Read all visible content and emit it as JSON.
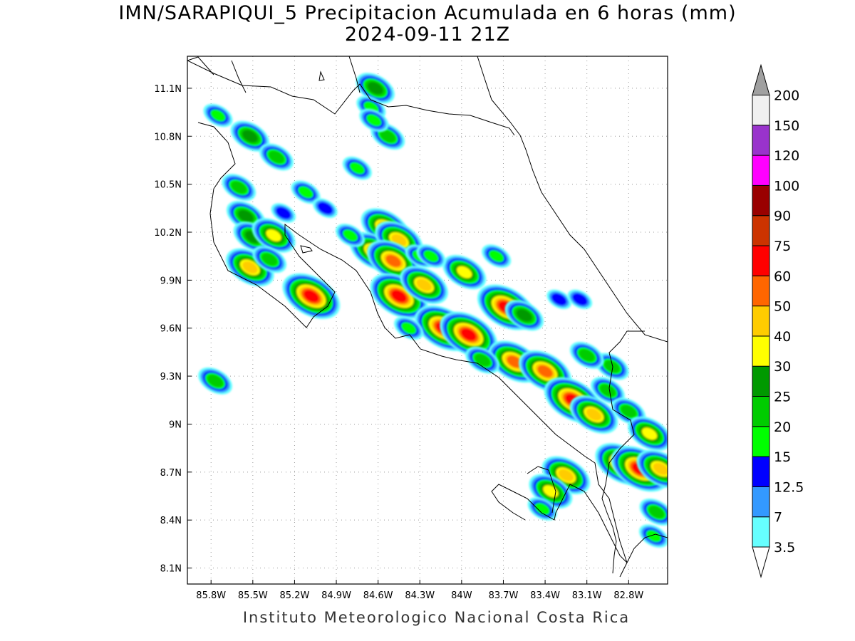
{
  "title_line1": "IMN/SARAPIQUI_5 Precipitacion Acumulada en 6 horas (mm)",
  "title_line2": "2024-09-11 21Z",
  "footer": "Instituto Meteorologico Nacional Costa Rica",
  "map": {
    "lon_range": [
      -85.97,
      -82.52
    ],
    "lat_range": [
      8.0,
      11.3
    ],
    "lon_ticks": [
      "85.8W",
      "85.5W",
      "85.2W",
      "84.9W",
      "84.6W",
      "84.3W",
      "84W",
      "83.7W",
      "83.4W",
      "83.1W",
      "82.8W"
    ],
    "lon_tick_values": [
      -85.8,
      -85.5,
      -85.2,
      -84.9,
      -84.6,
      -84.3,
      -84.0,
      -83.7,
      -83.4,
      -83.1,
      -82.8
    ],
    "lat_ticks": [
      "11.1N",
      "10.8N",
      "10.5N",
      "10.2N",
      "9.9N",
      "9.6N",
      "9.3N",
      "9N",
      "8.7N",
      "8.4N",
      "8.1N"
    ],
    "lat_tick_values": [
      11.1,
      10.8,
      10.5,
      10.2,
      9.9,
      9.6,
      9.3,
      9.0,
      8.7,
      8.4,
      8.1
    ],
    "grid": true
  },
  "colorbar": {
    "labels": [
      "3.5",
      "7",
      "12.5",
      "15",
      "20",
      "25",
      "30",
      "40",
      "50",
      "60",
      "75",
      "90",
      "100",
      "120",
      "150",
      "200"
    ],
    "colors": [
      "#66ffff",
      "#3399ff",
      "#0000ff",
      "#00ff00",
      "#00cc00",
      "#009900",
      "#ffff00",
      "#ffcc00",
      "#ff6600",
      "#ff0000",
      "#cc3300",
      "#990000",
      "#ff00ff",
      "#9933cc",
      "#f0f0f0",
      "#a0a0a0"
    ]
  },
  "precip_cells": [
    {
      "lon": -85.75,
      "lat": 10.93,
      "level": 3
    },
    {
      "lon": -85.52,
      "lat": 10.8,
      "level": 5
    },
    {
      "lon": -85.33,
      "lat": 10.67,
      "level": 4
    },
    {
      "lon": -85.12,
      "lat": 10.45,
      "level": 3
    },
    {
      "lon": -85.6,
      "lat": 10.48,
      "level": 4
    },
    {
      "lon": -85.55,
      "lat": 10.3,
      "level": 5
    },
    {
      "lon": -85.5,
      "lat": 10.17,
      "level": 5
    },
    {
      "lon": -85.35,
      "lat": 10.18,
      "level": 6
    },
    {
      "lon": -85.52,
      "lat": 9.98,
      "level": 7
    },
    {
      "lon": -85.38,
      "lat": 10.03,
      "level": 4
    },
    {
      "lon": -85.08,
      "lat": 9.8,
      "level": 9
    },
    {
      "lon": -84.62,
      "lat": 11.1,
      "level": 5
    },
    {
      "lon": -84.65,
      "lat": 10.98,
      "level": 3
    },
    {
      "lon": -84.53,
      "lat": 10.8,
      "level": 4
    },
    {
      "lon": -84.63,
      "lat": 10.9,
      "level": 3
    },
    {
      "lon": -84.75,
      "lat": 10.6,
      "level": 3
    },
    {
      "lon": -84.55,
      "lat": 10.23,
      "level": 7
    },
    {
      "lon": -84.63,
      "lat": 10.08,
      "level": 7
    },
    {
      "lon": -84.45,
      "lat": 10.15,
      "level": 7
    },
    {
      "lon": -84.49,
      "lat": 10.02,
      "level": 8
    },
    {
      "lon": -84.3,
      "lat": 10.05,
      "level": 3
    },
    {
      "lon": -84.45,
      "lat": 9.8,
      "level": 9
    },
    {
      "lon": -84.27,
      "lat": 9.87,
      "level": 7
    },
    {
      "lon": -83.98,
      "lat": 9.95,
      "level": 6
    },
    {
      "lon": -84.13,
      "lat": 9.6,
      "level": 9
    },
    {
      "lon": -83.95,
      "lat": 9.56,
      "level": 9
    },
    {
      "lon": -83.68,
      "lat": 9.73,
      "level": 9
    },
    {
      "lon": -83.55,
      "lat": 9.68,
      "level": 5
    },
    {
      "lon": -83.62,
      "lat": 9.39,
      "level": 8
    },
    {
      "lon": -83.4,
      "lat": 9.33,
      "level": 8
    },
    {
      "lon": -83.2,
      "lat": 9.15,
      "level": 9
    },
    {
      "lon": -83.05,
      "lat": 9.06,
      "level": 7
    },
    {
      "lon": -82.92,
      "lat": 9.36,
      "level": 4
    },
    {
      "lon": -82.95,
      "lat": 9.21,
      "level": 4
    },
    {
      "lon": -82.8,
      "lat": 9.08,
      "level": 4
    },
    {
      "lon": -82.65,
      "lat": 8.94,
      "level": 6
    },
    {
      "lon": -82.85,
      "lat": 8.75,
      "level": 8
    },
    {
      "lon": -82.72,
      "lat": 8.72,
      "level": 9
    },
    {
      "lon": -82.57,
      "lat": 8.72,
      "level": 7
    },
    {
      "lon": -83.25,
      "lat": 8.68,
      "level": 7
    },
    {
      "lon": -83.36,
      "lat": 8.58,
      "level": 6
    },
    {
      "lon": -83.42,
      "lat": 8.47,
      "level": 3
    },
    {
      "lon": -82.6,
      "lat": 8.45,
      "level": 4
    },
    {
      "lon": -82.62,
      "lat": 8.3,
      "level": 3
    },
    {
      "lon": -85.77,
      "lat": 9.27,
      "level": 4
    },
    {
      "lon": -83.1,
      "lat": 9.43,
      "level": 4
    },
    {
      "lon": -83.3,
      "lat": 9.78,
      "level": 2
    },
    {
      "lon": -83.15,
      "lat": 9.78,
      "level": 2
    },
    {
      "lon": -84.8,
      "lat": 10.18,
      "level": 3
    },
    {
      "lon": -84.22,
      "lat": 10.05,
      "level": 3
    },
    {
      "lon": -83.75,
      "lat": 10.05,
      "level": 3
    },
    {
      "lon": -84.38,
      "lat": 9.6,
      "level": 3
    },
    {
      "lon": -83.85,
      "lat": 9.4,
      "level": 4
    },
    {
      "lon": -85.28,
      "lat": 10.32,
      "level": 2
    },
    {
      "lon": -84.98,
      "lat": 10.35,
      "level": 2
    }
  ]
}
